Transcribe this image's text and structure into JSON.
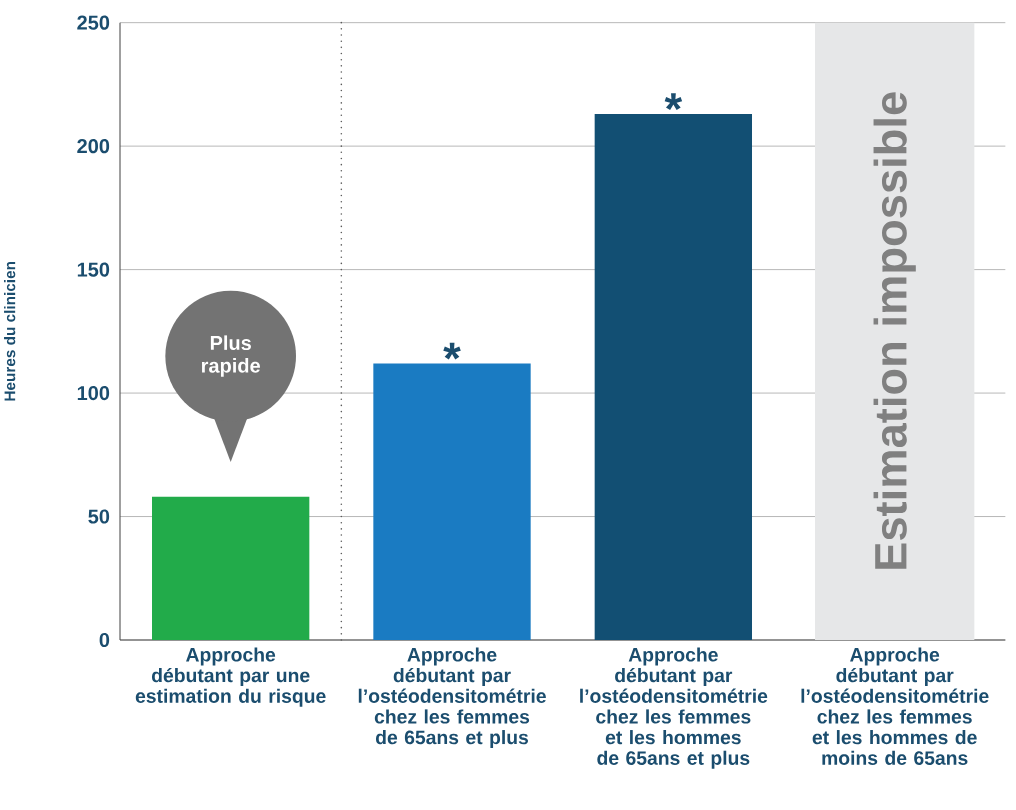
{
  "chart_data": {
    "type": "bar",
    "ylabel": "Heures du clinicien",
    "categories": [
      "Approche débutant par une estimation du risque",
      "Approche débutant par l’ostéodensitométrie chez les femmes de 65ans et plus",
      "Approche débutant par l’ostéodensitométrie chez les femmes et les hommes de 65ans et plus",
      "Approche débutant par l’ostéodensitométrie chez les femmes et les hommes de moins de 65ans"
    ],
    "values": [
      58,
      112,
      213,
      null
    ],
    "colors": [
      "#22ab4a",
      "#1a7bc2",
      "#124f73",
      "#124f73"
    ],
    "ylim": [
      0,
      250
    ],
    "yticks": [
      0,
      50,
      100,
      150,
      200,
      250
    ],
    "grid": "y",
    "bands": [
      {
        "axis": "x",
        "from": "Approche débutant par l’ostéodensitométrie chez les femmes et les hommes de moins de 65ans",
        "to": "Approche débutant par l’ostéodensitométrie chez les femmes et les hommes de moins de 65ans",
        "label": "Estimation impossible",
        "color": "#e6e7e8"
      }
    ],
    "annotations": [
      "Plus rapide",
      {
        "text": "*",
        "x": "Approche débutant par l’ostéodensitométrie chez les femmes de 65ans et plus",
        "y": 112
      },
      {
        "text": "*",
        "x": "Approche débutant par l’ostéodensitométrie chez les femmes et les hommes de 65ans et plus",
        "y": 213
      }
    ]
  }
}
